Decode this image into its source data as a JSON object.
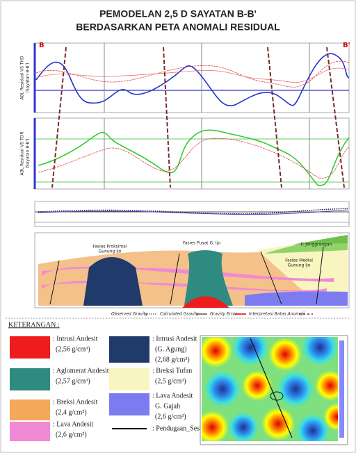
{
  "header": {
    "title_line1": "PEMODELAN 2,5 D SAYATAN B-B'",
    "title_line2": "BERDASARKAN PETA ANOMALI RESIDUAL"
  },
  "profile": {
    "start_label": "B",
    "end_label": "B'",
    "panel1_ylabel": "ABL Residual VS THD",
    "panel1_sublabel": "(Sayatan B-B')",
    "panel2_ylabel": "ABL Residual VS TDR",
    "panel2_sublabel": "(Sayatan B-B')"
  },
  "section": {
    "labels": [
      "Fasies Proksimal",
      "Gunung Ijo",
      "Fasies Pusat G. Ijo",
      "P. Jonggrangan",
      "Fasies Medial",
      "Gunung Ijo"
    ]
  },
  "section_legend": [
    "Observed Gravity",
    "Calculated Gravity",
    "Gravity Error",
    "Interpretasi Batas Anomali"
  ],
  "legend": {
    "heading": "KETERANGAN :",
    "items": [
      {
        "name": ": Intrusi Andesit",
        "detail": [
          "(2,56 g/cm³)"
        ]
      },
      {
        "name": ": Aglomerat Andesit",
        "detail": [
          "(2,57 g/cm³)"
        ]
      },
      {
        "name": ": Breksi Andesit",
        "detail": [
          "(2,4 g/cm³)"
        ]
      },
      {
        "name": ": Lava Andesit",
        "detail": [
          "(2,6 g/cm³)"
        ]
      },
      {
        "name": ": Intrusi Andesit",
        "detail": [
          "(G. Agung)",
          "(2,68 g/cm³)"
        ]
      },
      {
        "name": ": Breksi Tufan",
        "detail": [
          "(2,5 g/cm³)"
        ]
      },
      {
        "name": ": Lava Andesit",
        "detail": [
          "G. Gajah",
          "(2,6 g/cm³)"
        ]
      },
      {
        "name": ": Pendugaan_Sesar",
        "detail": []
      }
    ]
  }
}
